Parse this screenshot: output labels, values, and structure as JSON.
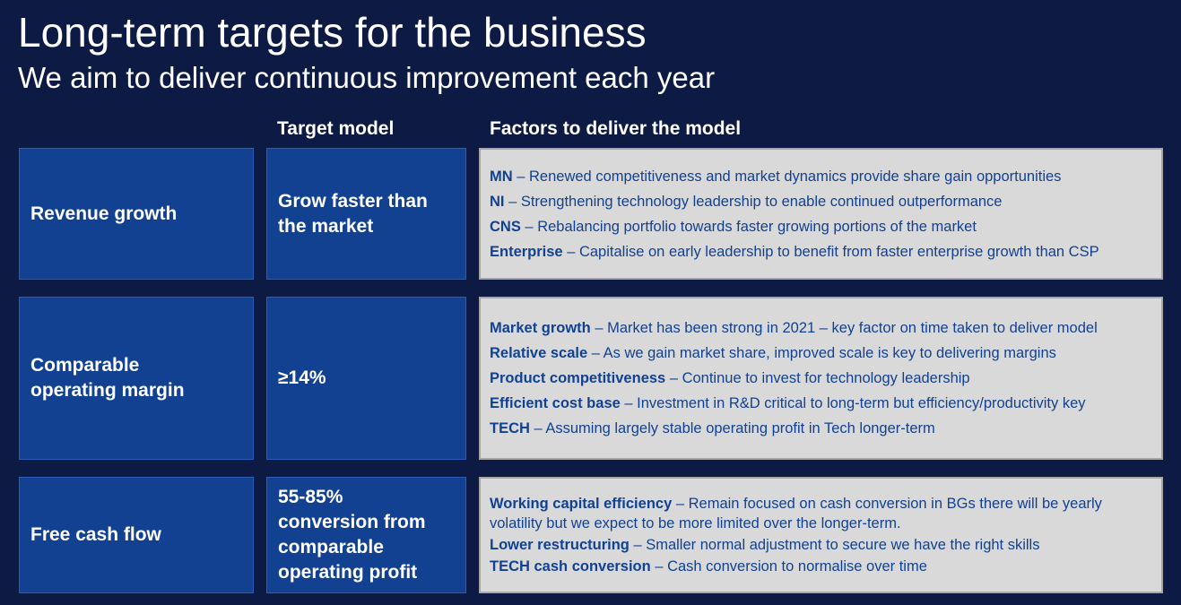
{
  "header": {
    "title": "Long-term targets for the business",
    "subtitle": "We aim to deliver continuous improvement each year"
  },
  "columns": {
    "target_model": "Target model",
    "factors": "Factors to deliver the model"
  },
  "rows": [
    {
      "metric": "Revenue growth",
      "target": "Grow faster than\nthe market",
      "factors": [
        {
          "key": "MN",
          "text": " – Renewed competitiveness and market dynamics provide share gain opportunities"
        },
        {
          "key": "NI",
          "text": " – Strengthening technology leadership to enable continued outperformance"
        },
        {
          "key": "CNS",
          "text": " – Rebalancing portfolio towards faster growing portions of the market"
        },
        {
          "key": "Enterprise",
          "text": " – Capitalise on early leadership to benefit from faster enterprise growth than CSP"
        }
      ]
    },
    {
      "metric": "Comparable\noperating margin",
      "target": "≥14%",
      "factors": [
        {
          "key": "Market growth",
          "text": " – Market has been strong in 2021 – key factor on time taken to deliver model"
        },
        {
          "key": "Relative scale",
          "text": " – As we gain market share, improved scale is key to delivering margins"
        },
        {
          "key": "Product competitiveness",
          "text": " – Continue to invest for technology leadership"
        },
        {
          "key": "Efficient cost base",
          "text": " – Investment in R&D critical to long-term but efficiency/productivity key"
        },
        {
          "key": "TECH",
          "text": " – Assuming largely stable operating profit in Tech longer-term"
        }
      ]
    },
    {
      "metric": "Free cash flow",
      "target": "55-85%\nconversion from\ncomparable\noperating profit",
      "factors": [
        {
          "key": "Working capital efficiency",
          "text": " – Remain focused on cash conversion in BGs there will be yearly volatility but we expect to be more limited over the longer-term."
        },
        {
          "key": "Lower restructuring",
          "text": " – Smaller normal adjustment to secure we have the right skills"
        },
        {
          "key": "TECH cash conversion",
          "text": " – Cash conversion to normalise over time"
        }
      ]
    }
  ],
  "colors": {
    "background": "#0d1a43",
    "cell_blue": "#124191",
    "factors_bg": "#d9d9d9",
    "factors_text": "#124191"
  }
}
